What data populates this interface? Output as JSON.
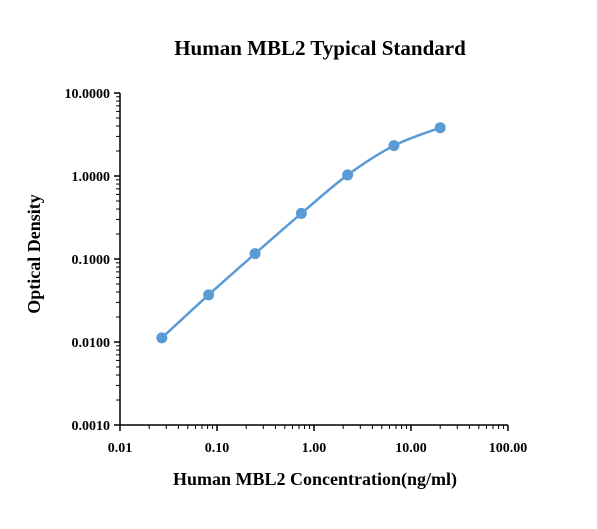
{
  "chart_data": {
    "type": "scatter",
    "title": "Human MBL2 Typical Standard",
    "xlabel": "Human MBL2  Concentration(ng/ml)",
    "ylabel": "Optical Density",
    "xscale": "log",
    "yscale": "log",
    "xlim": [
      0.01,
      100
    ],
    "ylim": [
      0.001,
      10
    ],
    "xticks": [
      "0.01",
      "0.10",
      "1.00",
      "10.00",
      "100.00"
    ],
    "yticks": [
      "0.0010",
      "0.0100",
      "0.1000",
      "1.0000",
      "10.0000"
    ],
    "grid": false,
    "legend": "none",
    "colors": {
      "series": "#5b9bd5",
      "axis": "#000000"
    },
    "series": [
      {
        "x": [
          0.027,
          0.082,
          0.247,
          0.741,
          2.222,
          6.667,
          20.0
        ],
        "y": [
          0.0112,
          0.037,
          0.116,
          0.354,
          1.03,
          2.32,
          3.82
        ],
        "fit": "smooth"
      }
    ]
  }
}
